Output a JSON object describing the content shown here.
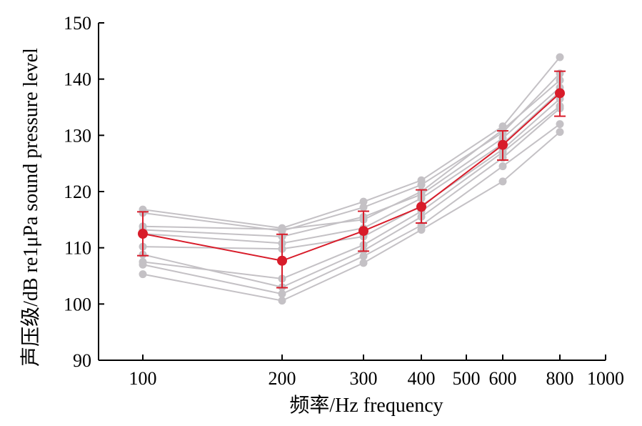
{
  "chart_data": {
    "type": "line",
    "xscale": "log",
    "xlabel": "频率/Hz frequency",
    "ylabel": "声压级/dB re1μPa sound pressure level",
    "xlim": [
      80,
      1000
    ],
    "ylim": [
      90,
      150
    ],
    "xticks": [
      100,
      200,
      300,
      400,
      500,
      600,
      800,
      1000
    ],
    "yticks": [
      90,
      100,
      110,
      120,
      130,
      140,
      150
    ],
    "x": [
      100,
      200,
      300,
      400,
      600,
      800
    ],
    "individual_series": [
      {
        "values": [
          116.8,
          113.5,
          118.2,
          122.0,
          131.6,
          143.9
        ]
      },
      {
        "values": [
          116.2,
          113.0,
          117.2,
          121.2,
          130.5,
          141.0
        ]
      },
      {
        "values": [
          113.8,
          113.3,
          115.0,
          120.0,
          131.0,
          139.8
        ]
      },
      {
        "values": [
          113.2,
          112.0,
          115.5,
          119.5,
          129.5,
          138.5
        ]
      },
      {
        "values": [
          112.5,
          110.8,
          113.5,
          118.8,
          128.5,
          137.8
        ]
      },
      {
        "values": [
          110.2,
          109.8,
          112.0,
          117.5,
          127.5,
          136.5
        ]
      },
      {
        "values": [
          107.5,
          104.5,
          110.5,
          116.5,
          127.0,
          135.2
        ]
      },
      {
        "values": [
          108.8,
          103.0,
          109.5,
          115.5,
          126.0,
          134.8
        ]
      },
      {
        "values": [
          107.0,
          101.8,
          108.5,
          114.0,
          124.5,
          132.0
        ]
      },
      {
        "values": [
          105.3,
          100.6,
          107.3,
          113.2,
          121.8,
          130.6
        ]
      }
    ],
    "mean_series": {
      "values": [
        112.5,
        107.7,
        113.0,
        117.3,
        128.3,
        137.5
      ],
      "err_low": [
        108.6,
        102.9,
        109.4,
        114.4,
        125.6,
        133.4
      ],
      "err_high": [
        116.4,
        112.4,
        116.5,
        120.3,
        130.8,
        141.4
      ]
    },
    "colors": {
      "individual": "#c4c1c5",
      "mean": "#d81c2a"
    }
  }
}
